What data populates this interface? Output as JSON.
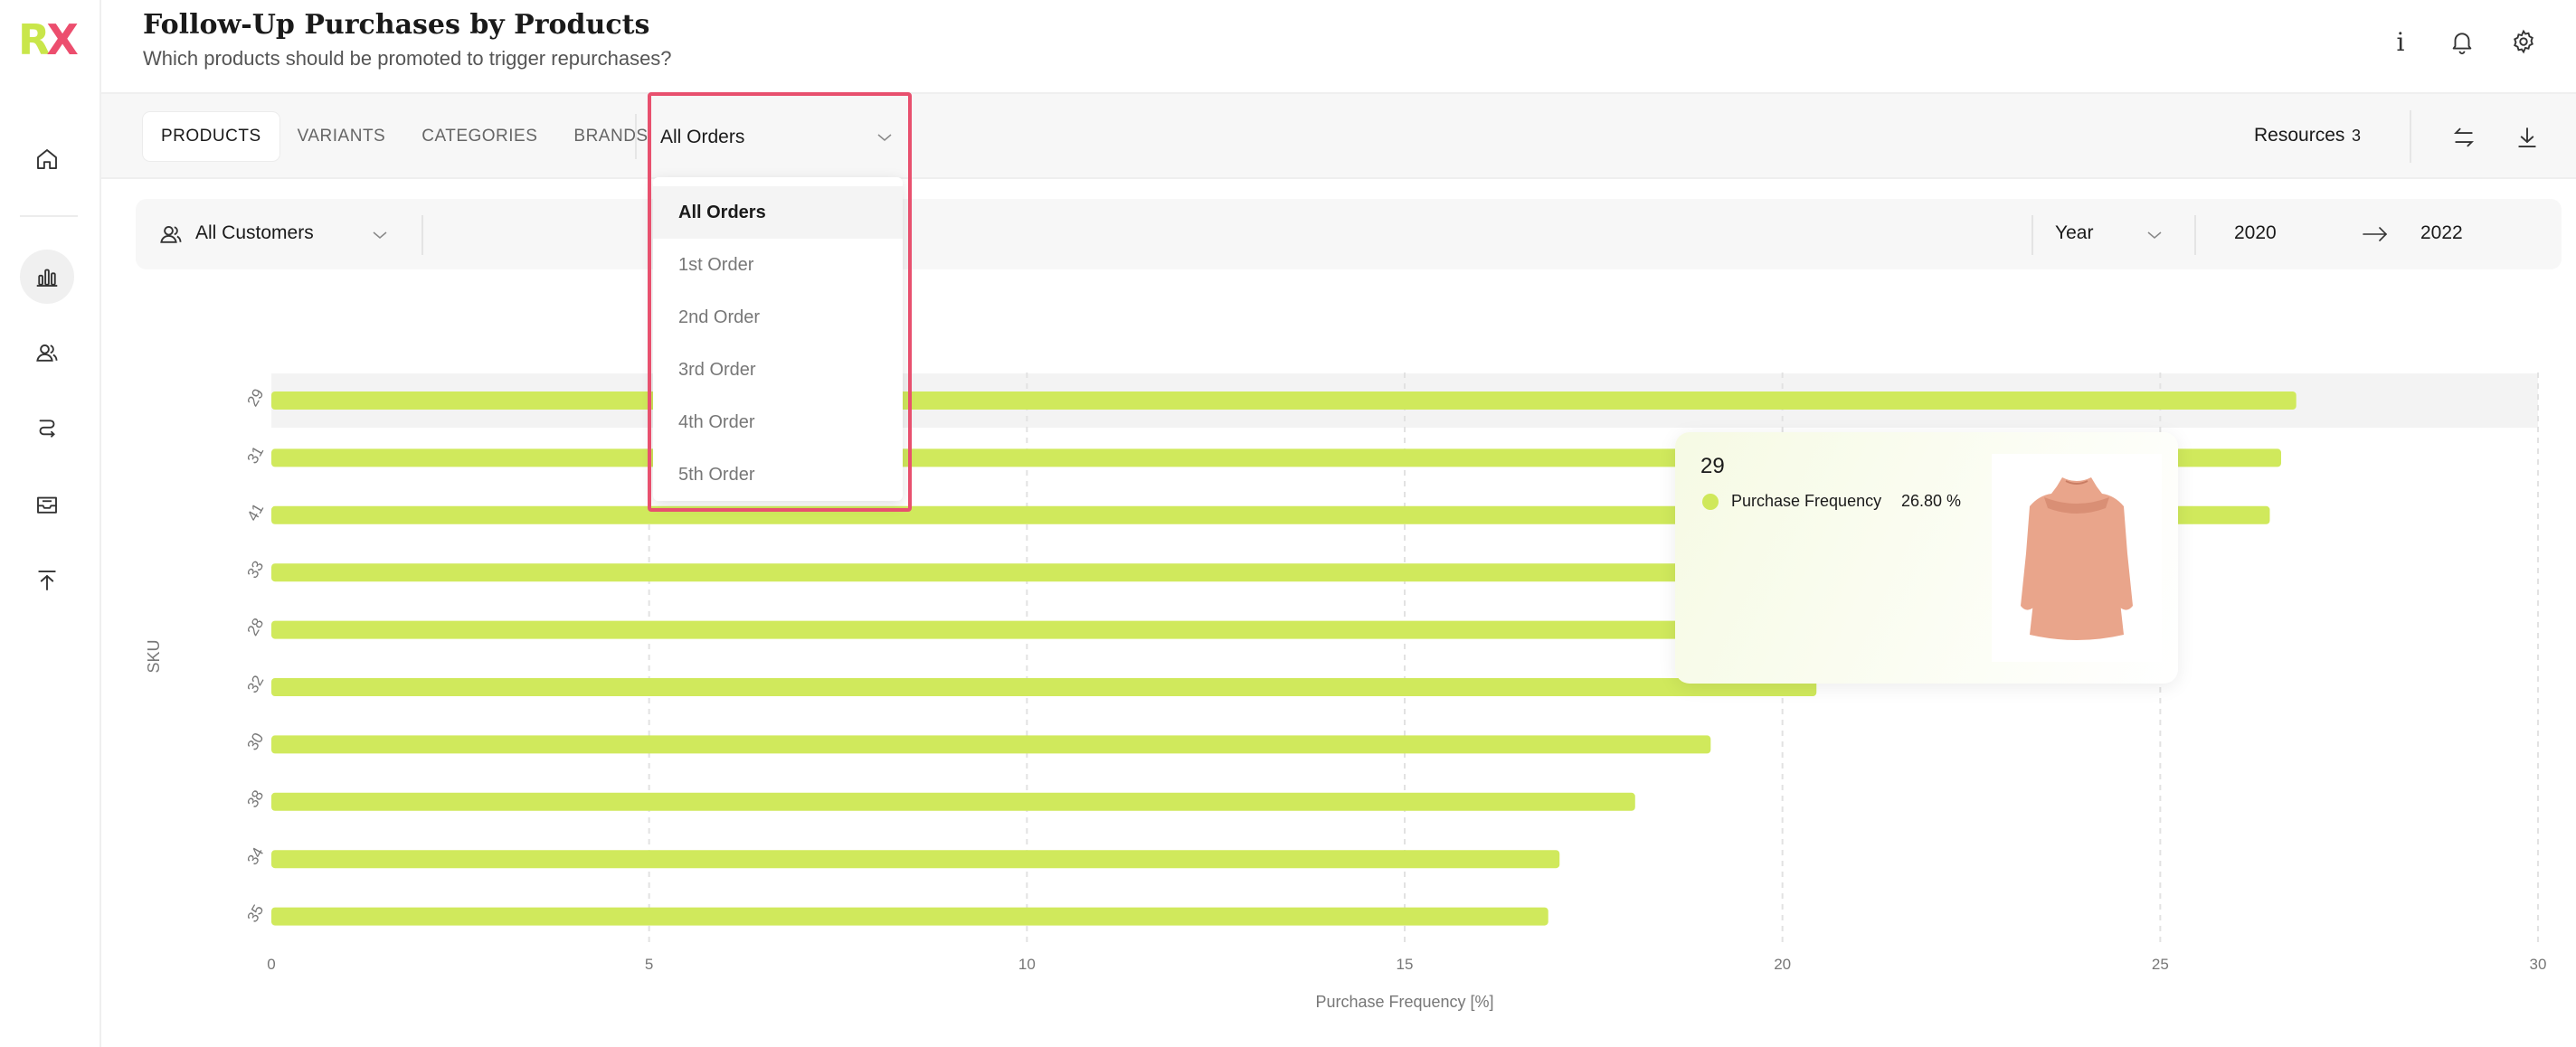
{
  "app": {
    "logo_letter_r": "R",
    "logo_letter_x": "X"
  },
  "sidebar": {
    "items": [
      {
        "icon": "home-icon"
      },
      {
        "icon": "bar-chart-icon",
        "active": true
      },
      {
        "icon": "users-icon"
      },
      {
        "icon": "route-icon"
      },
      {
        "icon": "inbox-icon"
      },
      {
        "icon": "upload-icon"
      }
    ]
  },
  "header": {
    "title": "Follow-Up Purchases by Products",
    "subtitle": "Which products should be promoted to trigger repurchases?",
    "info_glyph": "i",
    "icons": [
      "info-icon",
      "bell-icon",
      "gear-icon"
    ]
  },
  "toolbar": {
    "tabs": [
      {
        "label": "PRODUCTS",
        "active": true
      },
      {
        "label": "VARIANTS"
      },
      {
        "label": "CATEGORIES"
      },
      {
        "label": "BRANDS"
      }
    ],
    "orders_select": "All Orders",
    "resources_label": "Resources",
    "resources_count": "3",
    "icons": [
      "swap-icon",
      "download-icon"
    ]
  },
  "filters": {
    "customers": "All Customers",
    "period": "Year",
    "from": "2020",
    "to": "2022"
  },
  "dropdown": {
    "options": [
      "All Orders",
      "1st Order",
      "2nd Order",
      "3rd Order",
      "4th Order",
      "5th Order"
    ],
    "selected": "All Orders"
  },
  "tooltip": {
    "title": "29",
    "series_label": "Purchase Frequency",
    "value": "26.80 %",
    "dot_color": "#cfe85a",
    "image": "dress-image"
  },
  "colors": {
    "bar": "#d0e95c",
    "accent": "#e8506e",
    "logo_green": "#c9e64a",
    "logo_pink": "#ec4e6e"
  },
  "chart_data": {
    "type": "bar",
    "orientation": "horizontal",
    "categories": [
      "29",
      "31",
      "41",
      "33",
      "28",
      "32",
      "30",
      "38",
      "34",
      "35"
    ],
    "series": [
      {
        "values": [
          26.8,
          26.6,
          26.45,
          19.6,
          20.1,
          20.45,
          19.05,
          18.05,
          17.05,
          16.9
        ]
      }
    ],
    "xlabel": "Purchase Frequency [%]",
    "ylabel": "SKU",
    "xlim": [
      0,
      30
    ],
    "xticks": [
      0,
      5,
      10,
      15,
      20,
      25,
      30
    ],
    "highlighted_category": "29",
    "grid": "vertical dashed"
  }
}
